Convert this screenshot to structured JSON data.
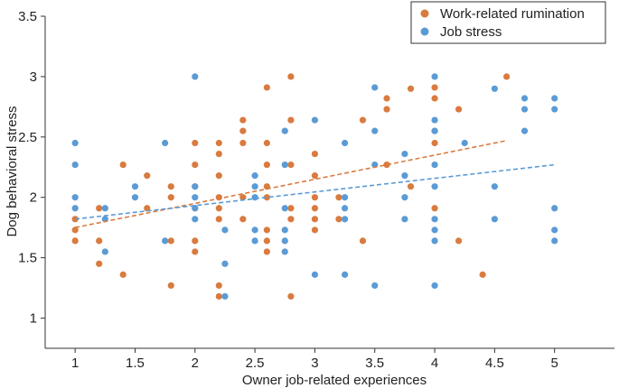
{
  "chart_data": {
    "type": "scatter",
    "xlabel": "Owner job-related experiences",
    "ylabel": "Dog behavioral stress",
    "xlim": [
      0.75,
      5.5
    ],
    "ylim": [
      0.75,
      3.5
    ],
    "x_ticks": [
      "1",
      "1.5",
      "2",
      "2.5",
      "3",
      "3.5",
      "4",
      "4.5",
      "5"
    ],
    "x_tick_values": [
      1,
      1.5,
      2,
      2.5,
      3,
      3.5,
      4,
      4.5,
      5
    ],
    "y_ticks": [
      "1",
      "1.5",
      "2",
      "2.5",
      "3",
      "3.5"
    ],
    "y_tick_values": [
      1,
      1.5,
      2,
      2.5,
      3,
      3.5
    ],
    "grid": false,
    "legend_position": "top-right",
    "series": [
      {
        "name": "Work-related rumination",
        "color": "#D97B3F",
        "trend": {
          "x": [
            1,
            4.6
          ],
          "y": [
            1.75,
            2.47
          ]
        },
        "points": [
          [
            1,
            1.82
          ],
          [
            1,
            1.73
          ],
          [
            1,
            1.64
          ],
          [
            1.2,
            1.91
          ],
          [
            1.2,
            1.64
          ],
          [
            1.2,
            1.45
          ],
          [
            1.4,
            2.27
          ],
          [
            1.4,
            1.36
          ],
          [
            1.6,
            2.18
          ],
          [
            1.6,
            1.91
          ],
          [
            1.8,
            2.09
          ],
          [
            1.8,
            2.0
          ],
          [
            1.8,
            1.64
          ],
          [
            1.8,
            1.27
          ],
          [
            2,
            2.45
          ],
          [
            2,
            2.27
          ],
          [
            2,
            2.09
          ],
          [
            2,
            1.91
          ],
          [
            2,
            1.64
          ],
          [
            2,
            1.55
          ],
          [
            2.2,
            2.45
          ],
          [
            2.2,
            2.36
          ],
          [
            2.2,
            2.18
          ],
          [
            2.2,
            2.0
          ],
          [
            2.2,
            1.91
          ],
          [
            2.2,
            1.82
          ],
          [
            2.2,
            1.27
          ],
          [
            2.2,
            1.18
          ],
          [
            2.4,
            2.64
          ],
          [
            2.4,
            2.55
          ],
          [
            2.4,
            2.45
          ],
          [
            2.4,
            2.0
          ],
          [
            2.4,
            1.82
          ],
          [
            2.6,
            2.91
          ],
          [
            2.6,
            2.45
          ],
          [
            2.6,
            2.27
          ],
          [
            2.6,
            2.09
          ],
          [
            2.6,
            2.0
          ],
          [
            2.6,
            1.73
          ],
          [
            2.6,
            1.64
          ],
          [
            2.6,
            1.55
          ],
          [
            2.8,
            3.0
          ],
          [
            2.8,
            2.64
          ],
          [
            2.8,
            2.27
          ],
          [
            2.8,
            1.91
          ],
          [
            2.8,
            1.82
          ],
          [
            2.8,
            1.18
          ],
          [
            3,
            2.36
          ],
          [
            3,
            2.18
          ],
          [
            3,
            2.0
          ],
          [
            3,
            1.91
          ],
          [
            3,
            1.82
          ],
          [
            3,
            1.73
          ],
          [
            3.2,
            2.0
          ],
          [
            3.2,
            1.82
          ],
          [
            3.4,
            2.64
          ],
          [
            3.4,
            1.64
          ],
          [
            3.6,
            2.82
          ],
          [
            3.6,
            2.73
          ],
          [
            3.6,
            2.27
          ],
          [
            3.8,
            2.9
          ],
          [
            3.8,
            2.09
          ],
          [
            4,
            2.91
          ],
          [
            4,
            2.82
          ],
          [
            4,
            2.55
          ],
          [
            4,
            2.45
          ],
          [
            4,
            1.91
          ],
          [
            4.2,
            2.73
          ],
          [
            4.2,
            1.64
          ],
          [
            4.4,
            1.36
          ],
          [
            4.6,
            3.0
          ]
        ]
      },
      {
        "name": "Job stress",
        "color": "#5B9BD5",
        "trend": {
          "x": [
            1,
            5
          ],
          "y": [
            1.82,
            2.27
          ]
        },
        "points": [
          [
            1,
            2.45
          ],
          [
            1,
            2.27
          ],
          [
            1,
            2.0
          ],
          [
            1,
            1.91
          ],
          [
            1.25,
            1.91
          ],
          [
            1.25,
            1.82
          ],
          [
            1.25,
            1.55
          ],
          [
            1.5,
            2.09
          ],
          [
            1.5,
            2.0
          ],
          [
            1.75,
            2.45
          ],
          [
            1.75,
            1.64
          ],
          [
            2,
            3.0
          ],
          [
            2,
            2.09
          ],
          [
            2,
            2.0
          ],
          [
            2,
            1.91
          ],
          [
            2,
            1.82
          ],
          [
            2.25,
            1.73
          ],
          [
            2.25,
            1.45
          ],
          [
            2.25,
            1.18
          ],
          [
            2.5,
            2.18
          ],
          [
            2.5,
            2.09
          ],
          [
            2.5,
            2.0
          ],
          [
            2.5,
            1.73
          ],
          [
            2.5,
            1.64
          ],
          [
            2.75,
            2.55
          ],
          [
            2.75,
            2.27
          ],
          [
            2.75,
            1.91
          ],
          [
            2.75,
            1.73
          ],
          [
            2.75,
            1.64
          ],
          [
            2.75,
            1.55
          ],
          [
            3,
            2.64
          ],
          [
            3,
            1.36
          ],
          [
            3.25,
            2.45
          ],
          [
            3.25,
            2.0
          ],
          [
            3.25,
            1.91
          ],
          [
            3.25,
            1.82
          ],
          [
            3.25,
            1.36
          ],
          [
            3.5,
            2.91
          ],
          [
            3.5,
            2.55
          ],
          [
            3.5,
            2.27
          ],
          [
            3.5,
            1.27
          ],
          [
            3.75,
            2.36
          ],
          [
            3.75,
            2.18
          ],
          [
            3.75,
            2.0
          ],
          [
            3.75,
            1.82
          ],
          [
            4,
            3.0
          ],
          [
            4,
            2.64
          ],
          [
            4,
            2.55
          ],
          [
            4,
            2.27
          ],
          [
            4,
            2.09
          ],
          [
            4,
            1.82
          ],
          [
            4,
            1.73
          ],
          [
            4,
            1.64
          ],
          [
            4,
            1.27
          ],
          [
            4.25,
            2.45
          ],
          [
            4.5,
            2.9
          ],
          [
            4.5,
            2.09
          ],
          [
            4.5,
            1.82
          ],
          [
            4.75,
            2.82
          ],
          [
            4.75,
            2.73
          ],
          [
            4.75,
            2.55
          ],
          [
            5,
            2.82
          ],
          [
            5,
            2.73
          ],
          [
            5,
            1.91
          ],
          [
            5,
            1.73
          ],
          [
            5,
            1.64
          ]
        ]
      }
    ]
  }
}
